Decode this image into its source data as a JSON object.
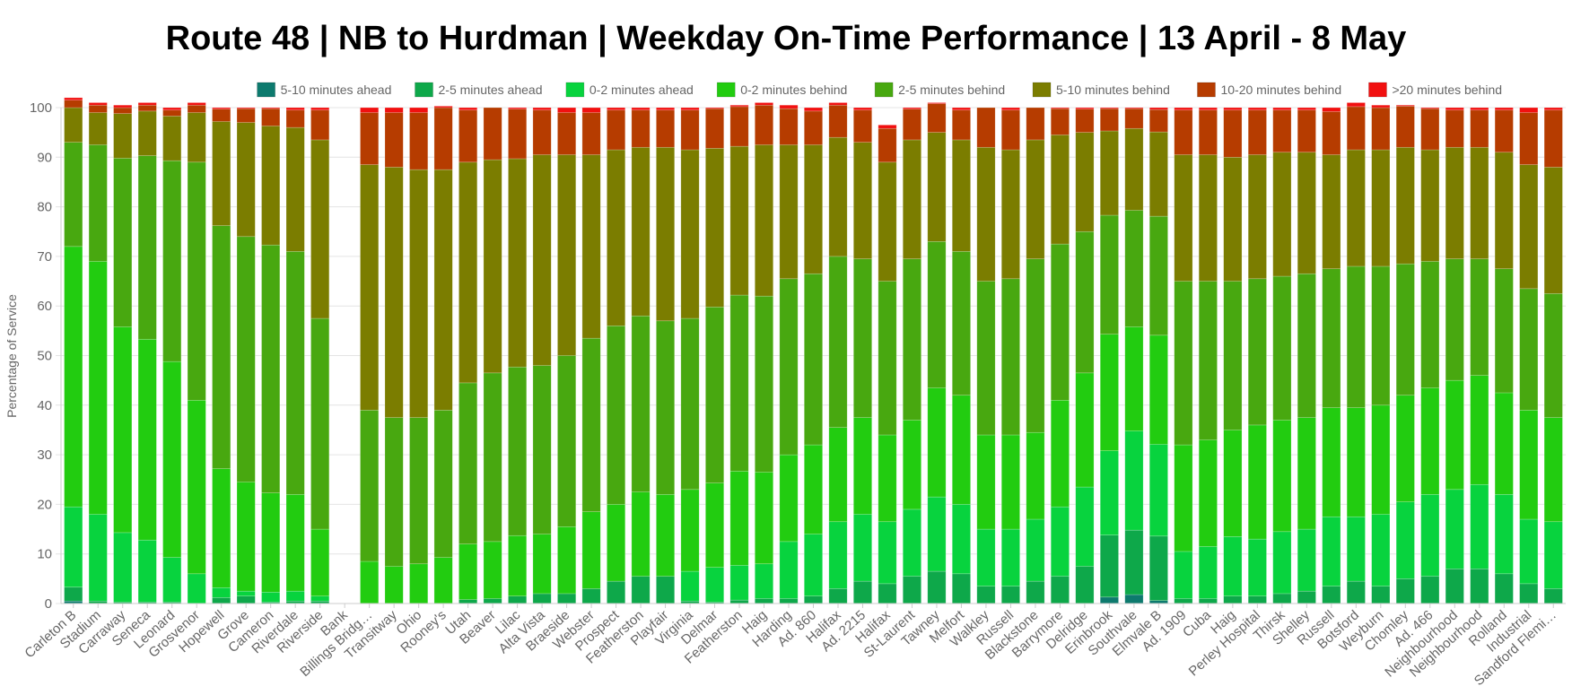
{
  "chart_data": {
    "type": "bar",
    "stacked": true,
    "title": "Route 48 | NB to Hurdman | Weekday On-Time Performance | 13 April - 8 May",
    "ylabel": "Percentage of Service",
    "xlabel": "",
    "ylim": [
      0,
      100
    ],
    "yticks": [
      0,
      10,
      20,
      30,
      40,
      50,
      60,
      70,
      80,
      90,
      100
    ],
    "grid": true,
    "legend_position": "top",
    "categories": [
      "Carleton B",
      "Stadium",
      "Carraway",
      "Seneca",
      "Leonard",
      "Grosvenor",
      "Hopewell",
      "Grove",
      "Cameron",
      "Riverdale",
      "Riverside",
      "Bank",
      "Billings Bridg…",
      "Transitway",
      "Ohio",
      "Rooney's",
      "Utah",
      "Beaver",
      "Lilac",
      "Alta Vista",
      "Braeside",
      "Webster",
      "Prospect",
      "Featherston",
      "Playfair",
      "Virginia",
      "Delmar",
      "Featherston",
      "Haig",
      "Harding",
      "Ad. 860",
      "Halifax",
      "Ad. 2215",
      "Halifax",
      "St-Laurent",
      "Tawney",
      "Melfort",
      "Walkley",
      "Russell",
      "Blackstone",
      "Barrymore",
      "Delridge",
      "Erinbrook",
      "Southvale",
      "Elmvale B",
      "Ad. 1909",
      "Cuba",
      "Haig",
      "Perley Hospital",
      "Thirsk",
      "Shelley",
      "Russell",
      "Botsford",
      "Weyburn",
      "Chomley",
      "Ad. 466",
      "Neighbourhood",
      "Neighbourhood",
      "Rolland",
      "Industrial",
      "Sandford Flemi…"
    ],
    "series": [
      {
        "name": "5-10 minutes ahead",
        "color": "#0d7a6e",
        "values": [
          0.5,
          0,
          0,
          0,
          0,
          0,
          0,
          0,
          0,
          0,
          0,
          0,
          0,
          0,
          0,
          0,
          0,
          0,
          0,
          0,
          0,
          0,
          0,
          0,
          0,
          0,
          0,
          0,
          0,
          0,
          0,
          0,
          0,
          0,
          0,
          0,
          0,
          0,
          0,
          0,
          0,
          0,
          1.3,
          1.8,
          0.6,
          0,
          0,
          0,
          0,
          0,
          0,
          0,
          0,
          0,
          0,
          0,
          0,
          0,
          0,
          0,
          0
        ]
      },
      {
        "name": "2-5 minutes ahead",
        "color": "#0ea84a",
        "values": [
          2.8,
          0.5,
          0.3,
          0.3,
          0.3,
          0,
          1.2,
          1.5,
          0.3,
          0.5,
          0.5,
          0,
          0,
          0,
          0,
          0,
          0.8,
          1,
          1.5,
          2,
          2,
          3,
          4.5,
          5.5,
          5.5,
          0.5,
          0.3,
          0.7,
          1,
          1,
          1.5,
          3,
          4.5,
          4,
          5.5,
          6.5,
          6,
          3.5,
          3.5,
          4.5,
          5.5,
          7.5,
          12.5,
          13,
          13,
          1,
          1,
          1.5,
          1.5,
          2,
          2.5,
          3.5,
          4.5,
          3.5,
          5,
          5.5,
          7,
          7,
          6,
          4,
          3
        ]
      },
      {
        "name": "0-2 minutes ahead",
        "color": "#08d33e",
        "values": [
          16.2,
          17.5,
          14,
          12.5,
          9,
          6,
          2,
          1,
          2,
          2,
          1,
          0,
          0,
          0,
          0,
          0,
          0,
          0,
          0,
          0,
          0,
          0,
          0,
          0,
          0,
          6,
          7,
          7,
          7,
          11.5,
          12.5,
          13.5,
          13.5,
          12.5,
          13.5,
          15,
          14,
          11.5,
          11.5,
          12.5,
          14,
          16,
          17,
          20,
          18.5,
          9.5,
          10.5,
          12,
          11.5,
          12.5,
          12.5,
          14,
          13,
          14.5,
          15.5,
          16.5,
          16,
          17,
          16,
          13,
          13.5
        ]
      },
      {
        "name": "0-2 minutes behind",
        "color": "#22cc10",
        "values": [
          52.5,
          51,
          41.5,
          40.5,
          39.5,
          35,
          24,
          22,
          20,
          19.5,
          13.5,
          0,
          8.5,
          7.5,
          8,
          9.3,
          11.2,
          11.5,
          12.2,
          12,
          13.5,
          15.5,
          15.5,
          17,
          16.5,
          16.5,
          17,
          19,
          18.5,
          17.5,
          18,
          19,
          19.5,
          17.5,
          18,
          22,
          22,
          19,
          19,
          17.5,
          21.5,
          23,
          23.5,
          21,
          22,
          21.5,
          21.5,
          21.5,
          23,
          22.5,
          22.5,
          22,
          22,
          22,
          21.5,
          21.5,
          22,
          22,
          20.5,
          22,
          21
        ]
      },
      {
        "name": "2-5 minutes behind",
        "color": "#48a810",
        "values": [
          21,
          23.5,
          34,
          37,
          40.5,
          48,
          49,
          49.5,
          50,
          49,
          42.5,
          0,
          30.5,
          30,
          29.5,
          29.7,
          32.5,
          34,
          34,
          34,
          34.5,
          35,
          36,
          35.5,
          35,
          34.5,
          35.5,
          35.5,
          35.5,
          35.5,
          34.5,
          34.5,
          32,
          31,
          32.5,
          29.5,
          29,
          31,
          31.5,
          35,
          31.5,
          28.5,
          24,
          23.5,
          24,
          33,
          32,
          30,
          29.5,
          29,
          29,
          28,
          28.5,
          28,
          26.5,
          25.5,
          24.5,
          23.5,
          25,
          24.5,
          25
        ]
      },
      {
        "name": "5-10 minutes behind",
        "color": "#7b7d00",
        "values": [
          7,
          6.5,
          9,
          9,
          9,
          10,
          21,
          23,
          24,
          25,
          36,
          0,
          49.5,
          50.5,
          50,
          48.5,
          44.5,
          43,
          42,
          42.5,
          40.5,
          37,
          35.5,
          34,
          35,
          34,
          32,
          30,
          30.5,
          27,
          26,
          24,
          23.5,
          24,
          24,
          22,
          22.5,
          27,
          26,
          24,
          22,
          20,
          17,
          16.5,
          17,
          25.5,
          25.5,
          25,
          25,
          25,
          24.5,
          23,
          23.5,
          23.5,
          23.5,
          22.5,
          22.5,
          22.5,
          23.5,
          25,
          25.5
        ]
      },
      {
        "name": "10-20 minutes behind",
        "color": "#b63c00",
        "values": [
          1.5,
          1.5,
          1.2,
          1.2,
          1.2,
          1.5,
          2.5,
          2.8,
          3.5,
          3.5,
          6,
          0,
          10.5,
          11,
          11.5,
          12.5,
          10.5,
          10.5,
          10,
          9,
          8.5,
          8.5,
          8,
          7.5,
          7.5,
          8,
          8,
          8,
          8,
          7.3,
          6.8,
          6.5,
          6.5,
          6.8,
          6.2,
          5.8,
          6,
          8,
          8,
          6.5,
          5.3,
          4.7,
          4.5,
          4,
          4.5,
          9,
          9,
          9.5,
          9,
          8.5,
          8.5,
          8.7,
          8.7,
          8.5,
          8.3,
          8.3,
          7.5,
          7.5,
          8.5,
          10.5,
          11.5
        ]
      },
      {
        "name": ">20 minutes behind",
        "color": "#f11010",
        "values": [
          0.5,
          0.5,
          0.5,
          0.5,
          0.5,
          0.5,
          0.3,
          0.2,
          0.2,
          0.5,
          0.5,
          0,
          1,
          1,
          1,
          0.3,
          0.5,
          0,
          0.3,
          0.5,
          1,
          1,
          0.5,
          0.5,
          0.5,
          0.5,
          0.2,
          0.3,
          0.5,
          0.7,
          0.7,
          0.5,
          0.5,
          0.7,
          0.3,
          0.2,
          0.5,
          0,
          0.5,
          0,
          0.2,
          0.3,
          0.2,
          0.2,
          0.4,
          0.5,
          0.5,
          0.5,
          0.5,
          0.5,
          0.5,
          0.8,
          0.8,
          0.5,
          0.2,
          0.2,
          0.5,
          0.5,
          0.5,
          1,
          0.5
        ]
      }
    ]
  }
}
